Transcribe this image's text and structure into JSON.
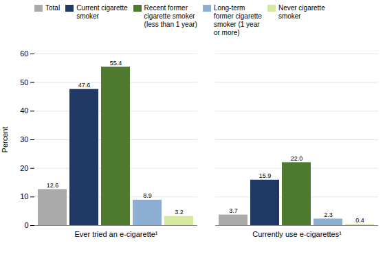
{
  "chart_data": {
    "type": "bar",
    "categories": [
      "Ever tried an e-cigarette¹",
      "Currently use e-cigarettes¹"
    ],
    "series": [
      {
        "name": "Total",
        "color": "#aaaaaa",
        "values": [
          12.6,
          3.7
        ],
        "value_labels": [
          "12.6",
          "3.7"
        ]
      },
      {
        "name": "Current cigarette\nsmoker",
        "color": "#1f3864",
        "values": [
          47.6,
          15.9
        ],
        "value_labels": [
          "47.6",
          "15.9"
        ]
      },
      {
        "name": "Recent former\ncigarette smoker\n(less than 1 year)",
        "color": "#4e7a30",
        "values": [
          55.4,
          22.0
        ],
        "value_labels": [
          "55.4",
          "22.0"
        ]
      },
      {
        "name": "Long-term\nformer cigarette\nsmoker (1 year\nor more)",
        "color": "#8dafd4",
        "values": [
          8.9,
          2.3
        ],
        "value_labels": [
          "8.9",
          "2.3"
        ]
      },
      {
        "name": "Never cigarette\nsmoker",
        "color": "#d5e8a0",
        "values": [
          3.2,
          0.4
        ],
        "value_labels": [
          "3.2",
          "0.4"
        ]
      }
    ],
    "ylabel": "Percent",
    "ylim": [
      0,
      60
    ],
    "yticks": [
      0,
      10,
      20,
      30,
      40,
      50,
      60
    ],
    "grid": true,
    "legend": "top",
    "data_labels": true
  }
}
